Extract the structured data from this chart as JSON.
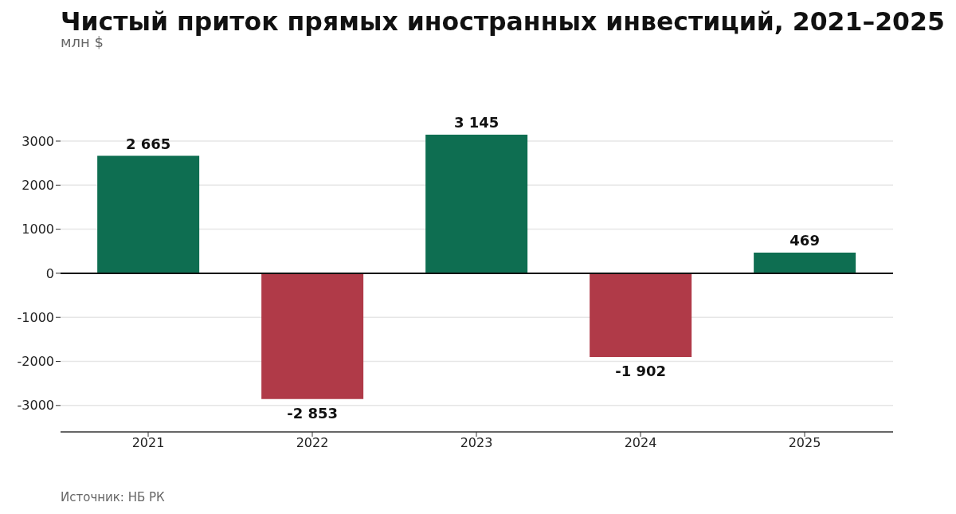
{
  "chart_data": {
    "type": "bar",
    "title": "Чистый приток прямых иностранных инвестиций, 2021–2025",
    "subtitle": "млн $",
    "categories": [
      "2021",
      "2022",
      "2023",
      "2024",
      "2025"
    ],
    "values": [
      2665,
      -2853,
      3145,
      -1902,
      469
    ],
    "colors": [
      "#0e6e51",
      "#b03a48",
      "#0e6e51",
      "#b03a48",
      "#0e6e51"
    ],
    "value_labels": [
      "2 665",
      "-2 853",
      "3 145",
      "-1 902",
      "469"
    ],
    "ylim": [
      -3600,
      3145
    ],
    "yticks": [
      -3000,
      -2000,
      -1000,
      0,
      1000,
      2000,
      3000
    ],
    "grid": "y",
    "ref_lines": [
      {
        "axis": "y",
        "value": 0,
        "color": "#111111"
      }
    ],
    "annotations": [
      "Источник: НБ РК"
    ]
  }
}
